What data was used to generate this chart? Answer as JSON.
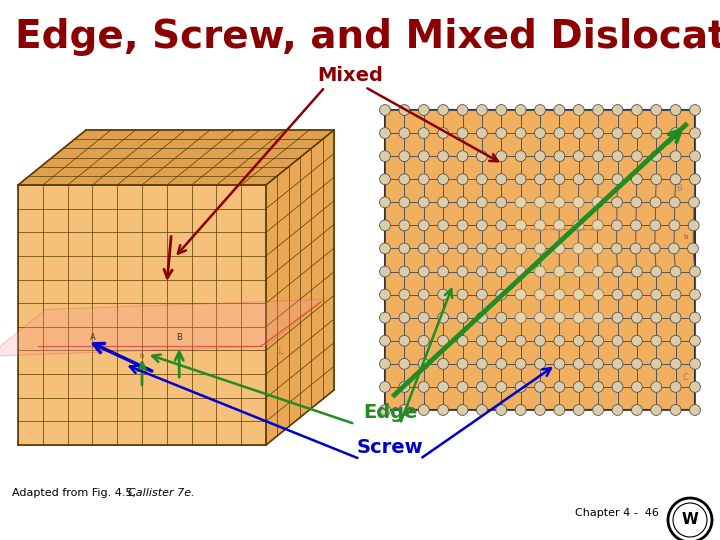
{
  "title": "Edge, Screw, and Mixed Dislocations",
  "title_color": "#8B0000",
  "title_fontsize": 28,
  "label_mixed": "Mixed",
  "label_edge": "Edge",
  "label_screw": "Screw",
  "label_adapted": "Adapted from Fig. 4.5, ",
  "label_callister": "Callister 7e.",
  "label_chapter": "Chapter 4 -  46",
  "label_color_mixed": "#8B0000",
  "label_color_edge": "#228B22",
  "label_color_screw": "#0000CD",
  "bg_color": "#FFFFFF",
  "cube_face_top_color": "#DFA050",
  "cube_face_front_color": "#F5C07A",
  "cube_face_right_color": "#E8A855",
  "cube_grid_color": "#5A3A00",
  "right_bg_color": "#F0B060",
  "right_grid_color": "#4A3010",
  "right_atom_color": "#888888",
  "right_atom_face": "#DDDDDD",
  "green_line_color": "#228B22",
  "pink_line_color": "#E06080",
  "mixed_arrow_color": "#8B0000",
  "edge_arrow_color": "#228B22",
  "screw_arrow_color": "#0000CD"
}
